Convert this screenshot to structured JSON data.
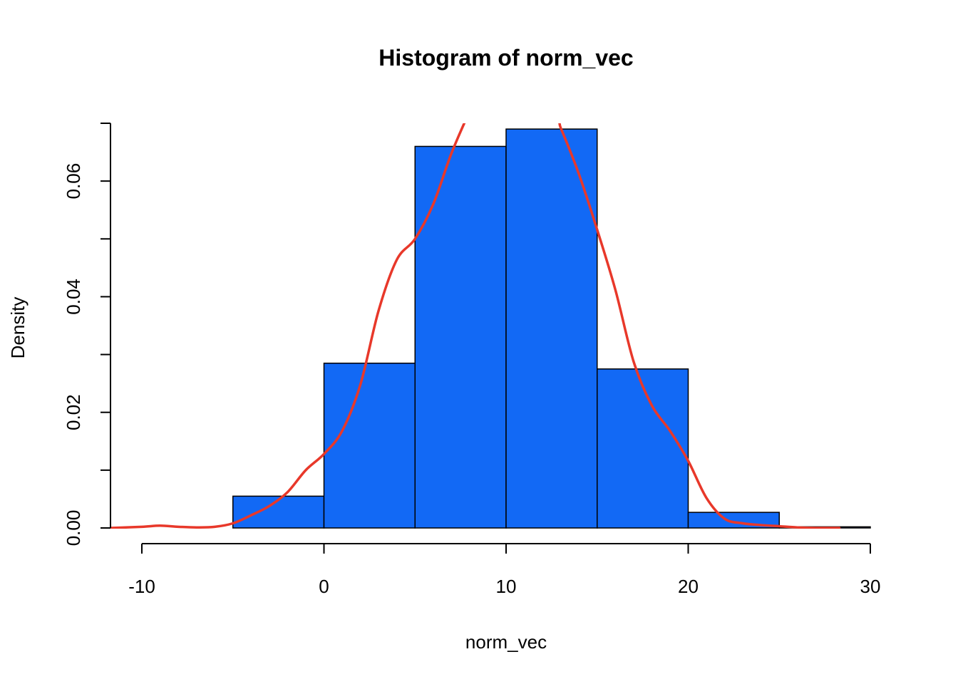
{
  "chart_data": {
    "type": "bar",
    "title": "Histogram of norm_vec",
    "xlabel": "norm_vec",
    "ylabel": "Density",
    "bins": [
      {
        "start": -5,
        "end": 0,
        "density": 0.0055
      },
      {
        "start": 0,
        "end": 5,
        "density": 0.0285
      },
      {
        "start": 5,
        "end": 10,
        "density": 0.066
      },
      {
        "start": 10,
        "end": 15,
        "density": 0.069
      },
      {
        "start": 15,
        "end": 20,
        "density": 0.0275
      },
      {
        "start": 20,
        "end": 25,
        "density": 0.0027
      },
      {
        "start": 25,
        "end": 30,
        "density": 0.0002
      }
    ],
    "x_ticks": [
      -10,
      0,
      10,
      20,
      30
    ],
    "x_tick_labels": [
      "-10",
      "0",
      "10",
      "20",
      "30"
    ],
    "y_ticks": [
      0,
      0.01,
      0.02,
      0.03,
      0.04,
      0.05,
      0.06,
      0.07
    ],
    "y_tick_labels": [
      "0.00",
      "0.02",
      "0.04",
      "0.06"
    ],
    "y_tick_label_values": [
      0,
      0.02,
      0.04,
      0.06
    ],
    "xlim": [
      -10,
      30
    ],
    "ylim": [
      0,
      0.07
    ],
    "density_curve": {
      "x": [
        -11.7,
        -10,
        -9,
        -8,
        -7,
        -6,
        -5,
        -4,
        -3,
        -2,
        -1,
        0,
        1,
        2,
        3,
        4,
        5,
        6,
        7,
        8,
        8.2,
        12.5,
        13,
        14,
        15,
        16,
        17,
        18,
        19,
        20,
        21,
        22,
        23,
        24,
        25,
        26,
        27,
        28.3
      ],
      "y": [
        0.0,
        0.0002,
        0.0004,
        0.0002,
        0.0001,
        0.0002,
        0.0008,
        0.0022,
        0.0038,
        0.0062,
        0.01,
        0.0128,
        0.0168,
        0.0248,
        0.0376,
        0.0464,
        0.05,
        0.056,
        0.0648,
        0.072,
        0.0725,
        0.0725,
        0.0692,
        0.0612,
        0.0516,
        0.0412,
        0.0288,
        0.0212,
        0.0168,
        0.0116,
        0.0052,
        0.0016,
        0.0008,
        0.0005,
        0.0003,
        0.0001,
        0.0,
        0.0
      ],
      "color": "#e8382a"
    },
    "bar_color": "#1269f5",
    "grid": false,
    "legend": "none"
  }
}
